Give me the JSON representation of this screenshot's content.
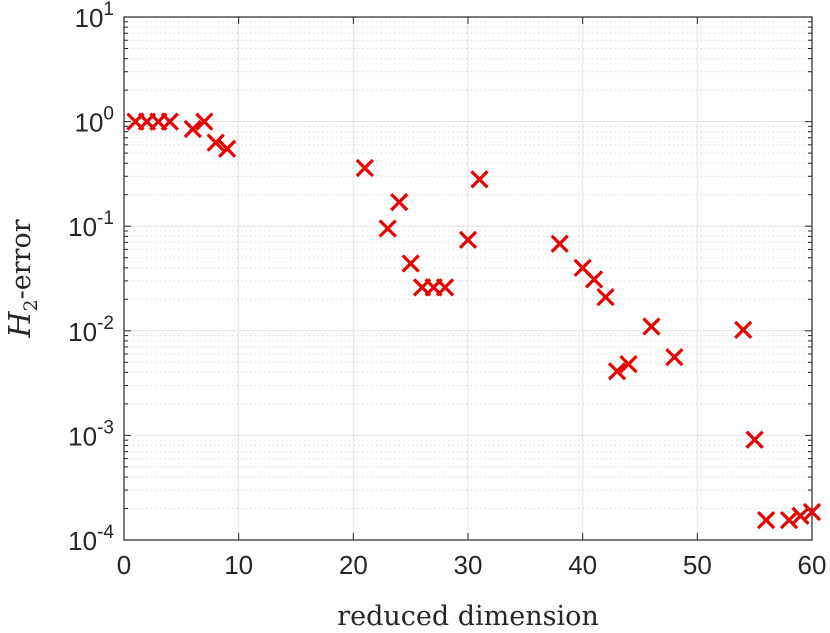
{
  "chart_data": {
    "type": "scatter",
    "xlabel": "reduced dimension",
    "ylabel": {
      "symbol": "H",
      "subscript": "2",
      "suffix": "-error"
    },
    "x_ticks": [
      0,
      10,
      20,
      30,
      40,
      50,
      60
    ],
    "y_ticks": [
      {
        "exp": 1,
        "base": "10",
        "power": "1"
      },
      {
        "exp": 0,
        "base": "10",
        "power": "0"
      },
      {
        "exp": -1,
        "base": "10",
        "power": "-1"
      },
      {
        "exp": -2,
        "base": "10",
        "power": "-2"
      },
      {
        "exp": -3,
        "base": "10",
        "power": "-3"
      },
      {
        "exp": -4,
        "base": "10",
        "power": "-4"
      }
    ],
    "xlim": [
      0,
      60
    ],
    "ylim": [
      0.0001,
      10
    ],
    "yscale": "log",
    "grid": true,
    "marker": "x",
    "marker_color": "#e60000",
    "points": [
      {
        "x": 1,
        "y": 1.0
      },
      {
        "x": 2,
        "y": 1.0
      },
      {
        "x": 3,
        "y": 1.0
      },
      {
        "x": 4,
        "y": 1.0
      },
      {
        "x": 6,
        "y": 0.85
      },
      {
        "x": 7,
        "y": 1.0
      },
      {
        "x": 8,
        "y": 0.63
      },
      {
        "x": 9,
        "y": 0.55
      },
      {
        "x": 21,
        "y": 0.36
      },
      {
        "x": 23,
        "y": 0.095
      },
      {
        "x": 24,
        "y": 0.17
      },
      {
        "x": 25,
        "y": 0.044
      },
      {
        "x": 26,
        "y": 0.026
      },
      {
        "x": 27,
        "y": 0.026
      },
      {
        "x": 28,
        "y": 0.026
      },
      {
        "x": 30,
        "y": 0.074
      },
      {
        "x": 31,
        "y": 0.28
      },
      {
        "x": 38,
        "y": 0.068
      },
      {
        "x": 40,
        "y": 0.04
      },
      {
        "x": 41,
        "y": 0.031
      },
      {
        "x": 42,
        "y": 0.021
      },
      {
        "x": 43,
        "y": 0.0041
      },
      {
        "x": 44,
        "y": 0.0048
      },
      {
        "x": 46,
        "y": 0.011
      },
      {
        "x": 48,
        "y": 0.0056
      },
      {
        "x": 54,
        "y": 0.0102
      },
      {
        "x": 55,
        "y": 0.00091
      },
      {
        "x": 56,
        "y": 0.000155
      },
      {
        "x": 58,
        "y": 0.000155
      },
      {
        "x": 59,
        "y": 0.00017
      },
      {
        "x": 60,
        "y": 0.000185
      }
    ]
  }
}
